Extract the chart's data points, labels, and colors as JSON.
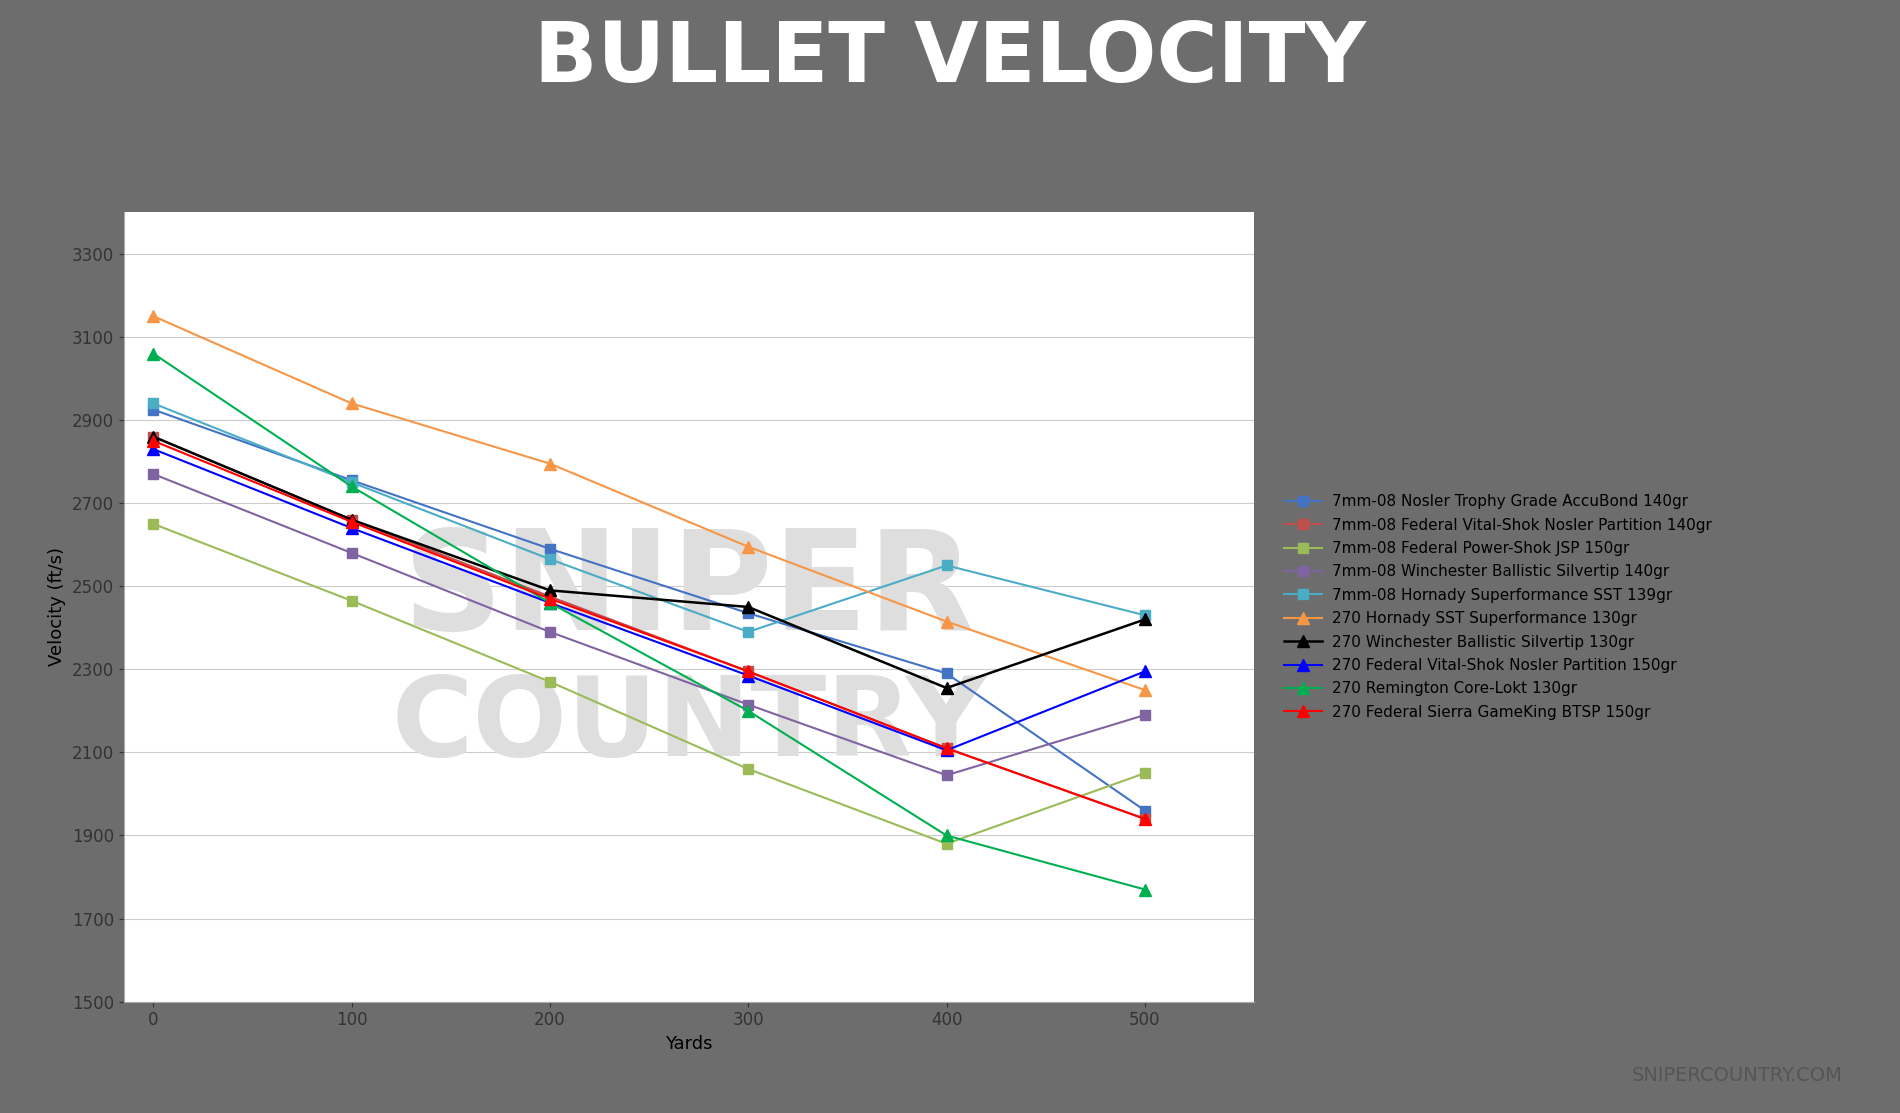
{
  "title": "BULLET VELOCITY",
  "xlabel": "Yards",
  "ylabel": "Velocity (ft/s)",
  "xlim": [
    -15,
    550
  ],
  "ylim": [
    1500,
    3400
  ],
  "yticks": [
    1500,
    1700,
    1900,
    2100,
    2300,
    2500,
    2700,
    2900,
    3100,
    3300
  ],
  "xticks": [
    0,
    100,
    200,
    300,
    400,
    500
  ],
  "yards": [
    0,
    100,
    200,
    300,
    400,
    500
  ],
  "series": [
    {
      "label": "7mm-08 Nosler Trophy Grade AccuBond 140gr",
      "color": "#4472C4",
      "marker": "s",
      "markersize": 7,
      "linewidth": 1.5,
      "values": [
        2925,
        2755,
        2590,
        2435,
        2285,
        1960
      ]
    },
    {
      "label": "7mm-08 Federal Vital-Shok Nosler Partition 140gr",
      "color": "#C0504D",
      "marker": "s",
      "markersize": 7,
      "linewidth": 1.5,
      "values": [
        2860,
        2660,
        2470,
        2290,
        2110,
        1940
      ]
    },
    {
      "label": "7mm-08 Federal Power-Shok JSP 150gr",
      "color": "#9BBB59",
      "marker": "s",
      "markersize": 7,
      "linewidth": 1.5,
      "values": [
        2650,
        2465,
        2260,
        2060,
        1880,
        2050
      ]
    },
    {
      "label": "7mm-08 Winchester Ballistic Silvertip 140gr",
      "color": "#8064A2",
      "marker": "s",
      "markersize": 7,
      "linewidth": 1.5,
      "values": [
        2770,
        2580,
        2390,
        2215,
        2045,
        2190
      ]
    },
    {
      "label": "7mm-08 Hornady Superformance SST 139gr",
      "color": "#4BACC6",
      "marker": "s",
      "markersize": 7,
      "linewidth": 1.5,
      "values": [
        2940,
        2750,
        2565,
        2390,
        2555,
        2430
      ]
    },
    {
      "label": "270 Hornady SST Superformance 130gr",
      "color": "#F79646",
      "marker": "^",
      "markersize": 8,
      "linewidth": 1.5,
      "values": [
        3150,
        2940,
        2800,
        2590,
        2415,
        2250
      ]
    },
    {
      "label": "270 Winchester Ballistic Silvertip 130gr",
      "color": "#000000",
      "marker": "^",
      "markersize": 8,
      "linewidth": 1.8,
      "values": [
        2860,
        2660,
        2490,
        2455,
        2255,
        2430
      ]
    },
    {
      "label": "270 Federal Vital-Shok Nosler Partition 150gr",
      "color": "#0000FF",
      "marker": "^",
      "markersize": 8,
      "linewidth": 1.5,
      "values": [
        2830,
        2640,
        2460,
        2285,
        2110,
        2300
      ]
    },
    {
      "label": "270 Remington Core-Lokt 130gr",
      "color": "#00B050",
      "marker": "^",
      "markersize": 8,
      "linewidth": 1.5,
      "values": [
        3060,
        2740,
        2460,
        2200,
        1900,
        1770
      ]
    },
    {
      "label": "270 Federal Sierra GameKing BTSP 150gr",
      "color": "#FF0000",
      "marker": "^",
      "markersize": 8,
      "linewidth": 1.5,
      "values": [
        2850,
        2655,
        2470,
        2290,
        2110,
        1940
      ]
    }
  ],
  "header_bg": "#6D6D6D",
  "stripe_color": "#E8514A",
  "plot_bg": "#FFFFFF",
  "title_color": "#FFFFFF",
  "title_fontsize": 60,
  "axis_label_fontsize": 13,
  "tick_fontsize": 12,
  "legend_fontsize": 11,
  "grid_color": "#CCCCCC",
  "footer_text": "SNIPERCOUNTRY.COM",
  "footer_fontsize": 14,
  "footer_color": "#555555"
}
